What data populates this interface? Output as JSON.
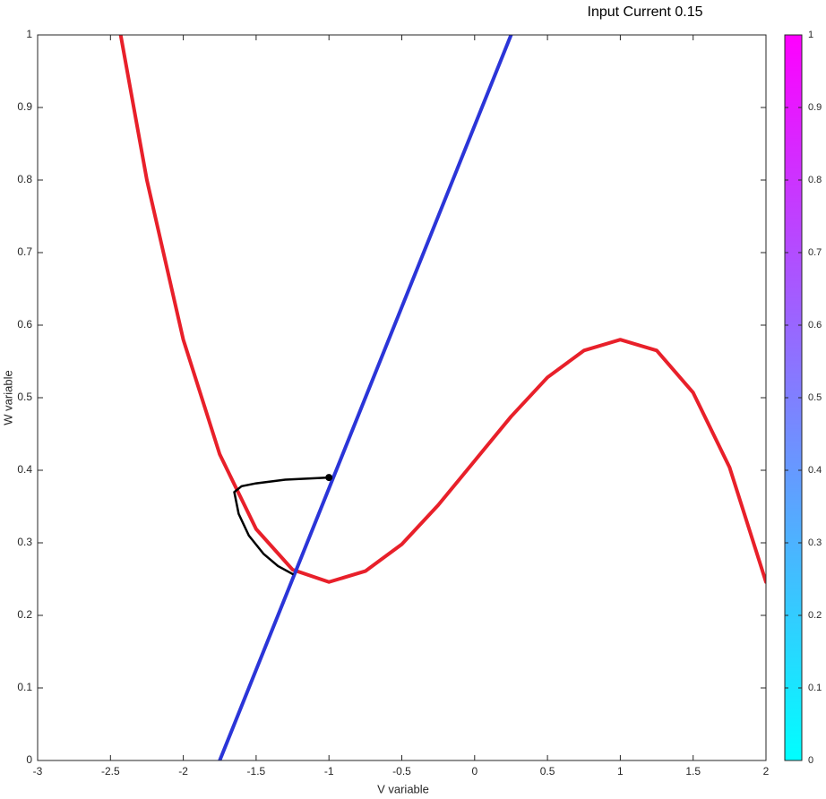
{
  "chart_data": {
    "type": "line",
    "title": "Input Current 0.15",
    "xlabel": "V variable",
    "ylabel": "W variable",
    "xlim": [
      -3,
      2
    ],
    "ylim": [
      0,
      1
    ],
    "xticks": [
      -3,
      -2.5,
      -2,
      -1.5,
      -1,
      -0.5,
      0,
      0.5,
      1,
      1.5,
      2
    ],
    "yticks": [
      0,
      0.1,
      0.2,
      0.3,
      0.4,
      0.5,
      0.6,
      0.7,
      0.8,
      0.9,
      1
    ],
    "series": [
      {
        "type": "line",
        "color": "#e8202a",
        "width": 4,
        "x": [
          -2.43,
          -2.25,
          -2,
          -1.75,
          -1.5,
          -1.25,
          -1,
          -0.75,
          -0.5,
          -0.25,
          0,
          0.25,
          0.5,
          0.75,
          1,
          1.25,
          1.5,
          1.75,
          2
        ],
        "values": [
          1.0,
          0.8,
          0.58,
          0.422,
          0.319,
          0.263,
          0.246,
          0.261,
          0.298,
          0.352,
          0.413,
          0.474,
          0.528,
          0.565,
          0.58,
          0.565,
          0.507,
          0.404,
          0.246
        ]
      },
      {
        "type": "line",
        "color": "#2b35d8",
        "width": 4,
        "x": [
          -1.75,
          0.25
        ],
        "values": [
          0,
          1
        ]
      },
      {
        "type": "line",
        "color": "#000000",
        "width": 2.5,
        "x": [
          -1,
          -1.3,
          -1.5,
          -1.6,
          -1.65,
          -1.62,
          -1.55,
          -1.45,
          -1.35,
          -1.25
        ],
        "values": [
          0.39,
          0.387,
          0.382,
          0.378,
          0.37,
          0.34,
          0.31,
          0.285,
          0.268,
          0.257
        ]
      },
      {
        "type": "scatter",
        "color": "#000000",
        "x": [
          -1
        ],
        "values": [
          0.39
        ]
      }
    ],
    "colorbar": {
      "colors": [
        "#00ffff",
        "#ff00ff"
      ],
      "lim": [
        0,
        1
      ],
      "ticks": [
        0,
        0.1,
        0.2,
        0.3,
        0.4,
        0.5,
        0.6,
        0.7,
        0.8,
        0.9,
        1
      ]
    }
  }
}
